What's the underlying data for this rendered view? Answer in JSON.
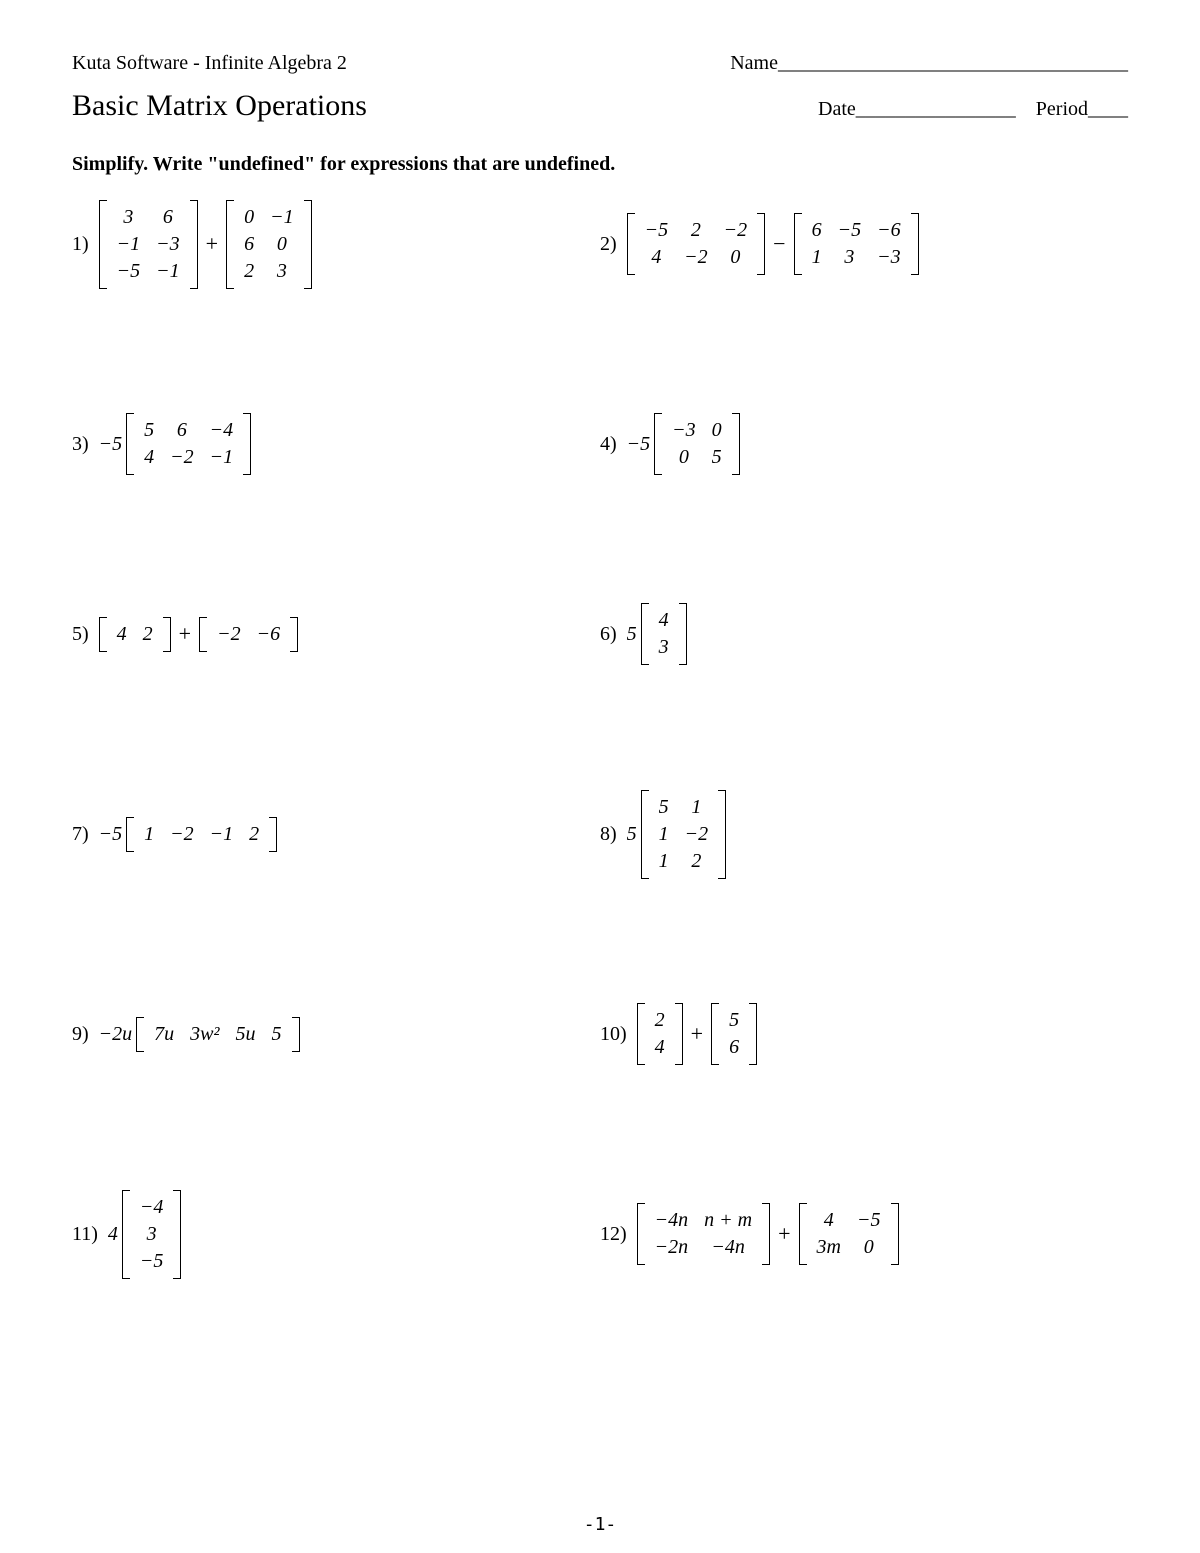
{
  "header": {
    "brand": "Kuta Software - Infinite Algebra 2",
    "name_label": "Name___________________________________",
    "title": "Basic Matrix Operations",
    "date_label": "Date________________",
    "period_label": "Period____"
  },
  "instruction": "Simplify.  Write \"undefined\" for expressions that are undefined.",
  "page_footer": "-1-",
  "problems": [
    {
      "n": "1)",
      "scalar": null,
      "a": {
        "rows": 3,
        "cols": 2,
        "cells": [
          "3",
          "6",
          "−1",
          "−3",
          "−5",
          "−1"
        ]
      },
      "op": "+",
      "b": {
        "rows": 3,
        "cols": 2,
        "cells": [
          "0",
          "−1",
          "6",
          "0",
          "2",
          "3"
        ]
      }
    },
    {
      "n": "2)",
      "scalar": null,
      "a": {
        "rows": 2,
        "cols": 3,
        "cells": [
          "−5",
          "2",
          "−2",
          "4",
          "−2",
          "0"
        ]
      },
      "op": "−",
      "b": {
        "rows": 2,
        "cols": 3,
        "cells": [
          "6",
          "−5",
          "−6",
          "1",
          "3",
          "−3"
        ]
      }
    },
    {
      "n": "3)",
      "scalar": "−5",
      "a": {
        "rows": 2,
        "cols": 3,
        "cells": [
          "5",
          "6",
          "−4",
          "4",
          "−2",
          "−1"
        ]
      },
      "op": null,
      "b": null
    },
    {
      "n": "4)",
      "scalar": "−5",
      "a": {
        "rows": 2,
        "cols": 2,
        "cells": [
          "−3",
          "0",
          "0",
          "5"
        ]
      },
      "op": null,
      "b": null
    },
    {
      "n": "5)",
      "scalar": null,
      "a": {
        "rows": 1,
        "cols": 2,
        "cells": [
          "4",
          "2"
        ]
      },
      "op": "+",
      "b": {
        "rows": 1,
        "cols": 2,
        "cells": [
          "−2",
          "−6"
        ]
      }
    },
    {
      "n": "6)",
      "scalar": "5",
      "a": {
        "rows": 2,
        "cols": 1,
        "cells": [
          "4",
          "3"
        ]
      },
      "op": null,
      "b": null
    },
    {
      "n": "7)",
      "scalar": "−5",
      "a": {
        "rows": 1,
        "cols": 4,
        "cells": [
          "1",
          "−2",
          "−1",
          "2"
        ]
      },
      "op": null,
      "b": null
    },
    {
      "n": "8)",
      "scalar": "5",
      "a": {
        "rows": 3,
        "cols": 2,
        "cells": [
          "5",
          "1",
          "1",
          "−2",
          "1",
          "2"
        ]
      },
      "op": null,
      "b": null
    },
    {
      "n": "9)",
      "scalar": "−2u",
      "a": {
        "rows": 1,
        "cols": 4,
        "cells": [
          "7u",
          "3w²",
          "5u",
          "5"
        ]
      },
      "op": null,
      "b": null
    },
    {
      "n": "10)",
      "scalar": null,
      "a": {
        "rows": 2,
        "cols": 1,
        "cells": [
          "2",
          "4"
        ]
      },
      "op": "+",
      "b": {
        "rows": 2,
        "cols": 1,
        "cells": [
          "5",
          "6"
        ]
      }
    },
    {
      "n": "11)",
      "scalar": "4",
      "a": {
        "rows": 3,
        "cols": 1,
        "cells": [
          "−4",
          "3",
          "−5"
        ]
      },
      "op": null,
      "b": null
    },
    {
      "n": "12)",
      "scalar": null,
      "a": {
        "rows": 2,
        "cols": 2,
        "cells": [
          "−4n",
          "n + m",
          "−2n",
          "−4n"
        ]
      },
      "op": "+",
      "b": {
        "rows": 2,
        "cols": 2,
        "cells": [
          "4",
          "−5",
          "3m",
          "0"
        ]
      }
    }
  ]
}
